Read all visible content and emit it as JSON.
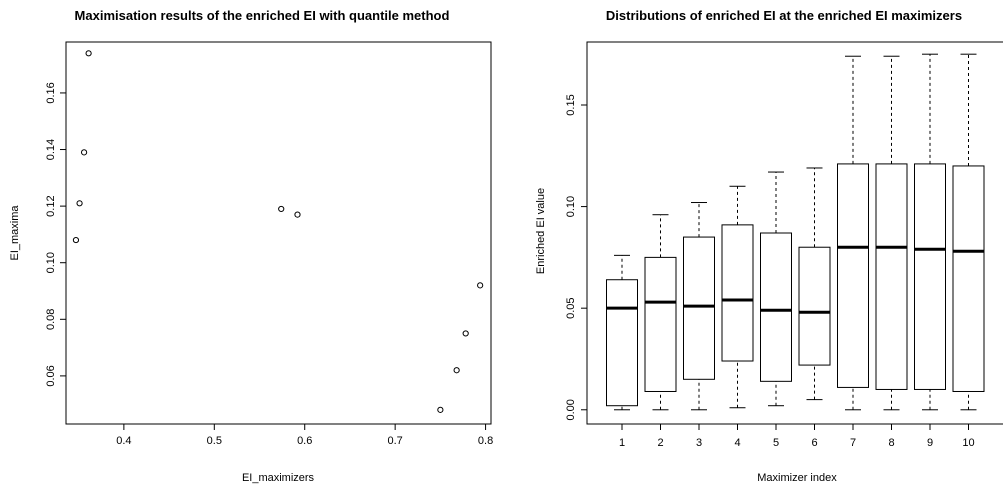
{
  "chart_data": [
    {
      "type": "scatter",
      "title": "Maximisation results of the enriched EI with quantile method",
      "xlabel": "EI_maximizers",
      "ylabel": "EI_maxima",
      "xlim": [
        0.336,
        0.806
      ],
      "ylim": [
        0.043,
        0.178
      ],
      "xticks": [
        0.4,
        0.5,
        0.6,
        0.7,
        0.8
      ],
      "xtick_labels": [
        "0.4",
        "0.5",
        "0.6",
        "0.7",
        "0.8"
      ],
      "yticks": [
        0.06,
        0.08,
        0.1,
        0.12,
        0.14,
        0.16
      ],
      "ytick_labels": [
        "0.06",
        "0.08",
        "0.10",
        "0.12",
        "0.14",
        "0.16"
      ],
      "points": [
        {
          "x": 0.347,
          "y": 0.108
        },
        {
          "x": 0.351,
          "y": 0.121
        },
        {
          "x": 0.356,
          "y": 0.139
        },
        {
          "x": 0.361,
          "y": 0.174
        },
        {
          "x": 0.574,
          "y": 0.119
        },
        {
          "x": 0.592,
          "y": 0.117
        },
        {
          "x": 0.75,
          "y": 0.048
        },
        {
          "x": 0.768,
          "y": 0.062
        },
        {
          "x": 0.778,
          "y": 0.075
        },
        {
          "x": 0.794,
          "y": 0.092
        }
      ],
      "grid": false
    },
    {
      "type": "boxplot",
      "title": "Distributions of enriched EI at the enriched EI maximizers",
      "xlabel": "Maximizer index",
      "ylabel": "Enriched EI value",
      "ylim": [
        -0.007,
        0.181
      ],
      "yticks": [
        0.0,
        0.05,
        0.1,
        0.15
      ],
      "ytick_labels": [
        "0.00",
        "0.05",
        "0.10",
        "0.15"
      ],
      "categories": [
        "1",
        "2",
        "3",
        "4",
        "5",
        "6",
        "7",
        "8",
        "9",
        "10"
      ],
      "boxes": [
        {
          "min": 0.0,
          "q1": 0.002,
          "median": 0.05,
          "q3": 0.064,
          "max": 0.076
        },
        {
          "min": 0.0,
          "q1": 0.009,
          "median": 0.053,
          "q3": 0.075,
          "max": 0.096
        },
        {
          "min": 0.0,
          "q1": 0.015,
          "median": 0.051,
          "q3": 0.085,
          "max": 0.102
        },
        {
          "min": 0.001,
          "q1": 0.024,
          "median": 0.054,
          "q3": 0.091,
          "max": 0.11
        },
        {
          "min": 0.002,
          "q1": 0.014,
          "median": 0.049,
          "q3": 0.087,
          "max": 0.117
        },
        {
          "min": 0.005,
          "q1": 0.022,
          "median": 0.048,
          "q3": 0.08,
          "max": 0.119
        },
        {
          "min": 0.0,
          "q1": 0.011,
          "median": 0.08,
          "q3": 0.121,
          "max": 0.174
        },
        {
          "min": 0.0,
          "q1": 0.01,
          "median": 0.08,
          "q3": 0.121,
          "max": 0.174
        },
        {
          "min": 0.0,
          "q1": 0.01,
          "median": 0.079,
          "q3": 0.121,
          "max": 0.175
        },
        {
          "min": 0.0,
          "q1": 0.009,
          "median": 0.078,
          "q3": 0.12,
          "max": 0.175
        }
      ],
      "grid": false
    }
  ]
}
